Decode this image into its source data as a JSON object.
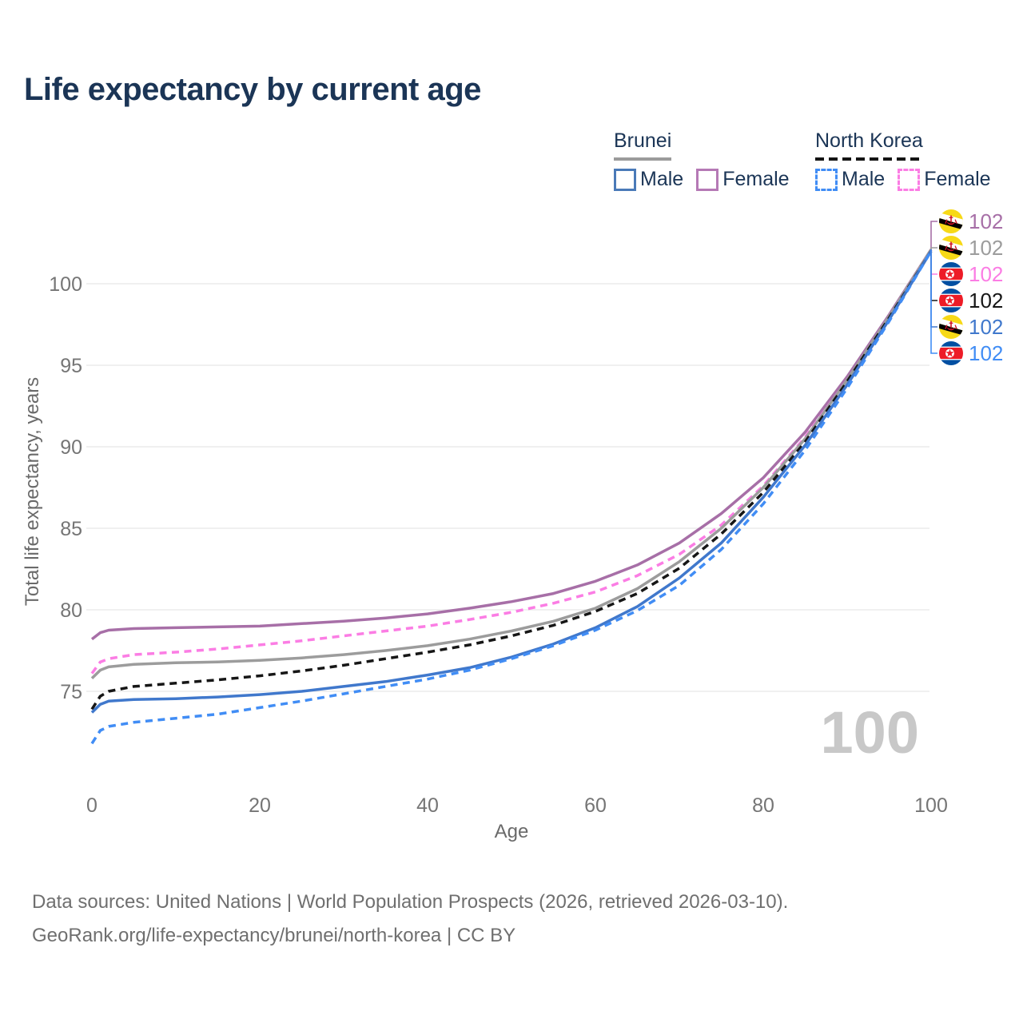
{
  "title": "Life expectancy by current age",
  "legend": {
    "groups": [
      {
        "label": "Brunei",
        "line_style": "solid",
        "underline_color": "#9b9b9b",
        "items": [
          {
            "label": "Male",
            "color": "#4a7ab8",
            "dashed": false
          },
          {
            "label": "Female",
            "color": "#b579b5",
            "dashed": false
          }
        ]
      },
      {
        "label": "North Korea",
        "line_style": "dashed",
        "underline_color": "#141414",
        "items": [
          {
            "label": "Male",
            "color": "#418df5",
            "dashed": true
          },
          {
            "label": "Female",
            "color": "#fb7de4",
            "dashed": true
          }
        ]
      }
    ]
  },
  "chart_data": {
    "type": "line",
    "title": "Life expectancy by current age",
    "xlabel": "Age",
    "ylabel": "Total life expectancy, years",
    "x_ticks": [
      0,
      20,
      40,
      60,
      80,
      100
    ],
    "y_ticks": [
      75,
      80,
      85,
      90,
      95,
      100
    ],
    "xlim": [
      0,
      100
    ],
    "ylim": [
      70.5,
      103
    ],
    "grid": "horizontal-only",
    "legend_position": "top-right",
    "series": [
      {
        "id": "brunei-female",
        "country": "Brunei",
        "sex": "Female",
        "color": "#a76fa7",
        "dashed": false,
        "points": [
          [
            0,
            78.2
          ],
          [
            1,
            78.6
          ],
          [
            2,
            78.75
          ],
          [
            5,
            78.85
          ],
          [
            10,
            78.9
          ],
          [
            15,
            78.95
          ],
          [
            20,
            79.0
          ],
          [
            25,
            79.15
          ],
          [
            30,
            79.3
          ],
          [
            35,
            79.5
          ],
          [
            40,
            79.75
          ],
          [
            45,
            80.1
          ],
          [
            50,
            80.5
          ],
          [
            55,
            81.0
          ],
          [
            60,
            81.75
          ],
          [
            65,
            82.75
          ],
          [
            70,
            84.1
          ],
          [
            75,
            85.9
          ],
          [
            80,
            88.1
          ],
          [
            85,
            90.9
          ],
          [
            90,
            94.3
          ],
          [
            95,
            98.1
          ],
          [
            100,
            102.1
          ]
        ]
      },
      {
        "id": "nk-female",
        "country": "North Korea",
        "sex": "Female",
        "color": "#fb7de4",
        "dashed": true,
        "points": [
          [
            0,
            76.1
          ],
          [
            1,
            76.8
          ],
          [
            2,
            77.0
          ],
          [
            5,
            77.25
          ],
          [
            10,
            77.4
          ],
          [
            15,
            77.6
          ],
          [
            20,
            77.85
          ],
          [
            25,
            78.1
          ],
          [
            30,
            78.4
          ],
          [
            35,
            78.7
          ],
          [
            40,
            79.0
          ],
          [
            45,
            79.4
          ],
          [
            50,
            79.85
          ],
          [
            55,
            80.4
          ],
          [
            60,
            81.1
          ],
          [
            65,
            82.1
          ],
          [
            70,
            83.4
          ],
          [
            75,
            85.2
          ],
          [
            80,
            87.6
          ],
          [
            85,
            90.6
          ],
          [
            90,
            94.1
          ],
          [
            95,
            98.0
          ],
          [
            100,
            102.1
          ]
        ]
      },
      {
        "id": "brunei-total",
        "country": "Brunei",
        "sex": "Both",
        "color": "#9c9c9c",
        "dashed": false,
        "points": [
          [
            0,
            75.8
          ],
          [
            1,
            76.3
          ],
          [
            2,
            76.5
          ],
          [
            5,
            76.65
          ],
          [
            10,
            76.75
          ],
          [
            15,
            76.8
          ],
          [
            20,
            76.9
          ],
          [
            25,
            77.05
          ],
          [
            30,
            77.25
          ],
          [
            35,
            77.5
          ],
          [
            40,
            77.8
          ],
          [
            45,
            78.2
          ],
          [
            50,
            78.7
          ],
          [
            55,
            79.3
          ],
          [
            60,
            80.1
          ],
          [
            65,
            81.3
          ],
          [
            70,
            82.95
          ],
          [
            75,
            85.0
          ],
          [
            80,
            87.5
          ],
          [
            85,
            90.5
          ],
          [
            90,
            94.1
          ],
          [
            95,
            98.0
          ],
          [
            100,
            102.1
          ]
        ]
      },
      {
        "id": "nk-total",
        "country": "North Korea",
        "sex": "Both",
        "color": "#161616",
        "dashed": true,
        "points": [
          [
            0,
            73.9
          ],
          [
            1,
            74.7
          ],
          [
            2,
            75.0
          ],
          [
            5,
            75.3
          ],
          [
            10,
            75.5
          ],
          [
            15,
            75.7
          ],
          [
            20,
            75.95
          ],
          [
            25,
            76.25
          ],
          [
            30,
            76.6
          ],
          [
            35,
            77.0
          ],
          [
            40,
            77.4
          ],
          [
            45,
            77.85
          ],
          [
            50,
            78.4
          ],
          [
            55,
            79.05
          ],
          [
            60,
            79.9
          ],
          [
            65,
            81.0
          ],
          [
            70,
            82.55
          ],
          [
            75,
            84.65
          ],
          [
            80,
            87.2
          ],
          [
            85,
            90.3
          ],
          [
            90,
            94.0
          ],
          [
            95,
            97.9
          ],
          [
            100,
            102.0
          ]
        ]
      },
      {
        "id": "brunei-male",
        "country": "Brunei",
        "sex": "Male",
        "color": "#4078cc",
        "dashed": false,
        "points": [
          [
            0,
            73.7
          ],
          [
            1,
            74.2
          ],
          [
            2,
            74.4
          ],
          [
            5,
            74.5
          ],
          [
            10,
            74.55
          ],
          [
            15,
            74.65
          ],
          [
            20,
            74.8
          ],
          [
            25,
            75.0
          ],
          [
            30,
            75.3
          ],
          [
            35,
            75.6
          ],
          [
            40,
            76.0
          ],
          [
            45,
            76.45
          ],
          [
            50,
            77.1
          ],
          [
            55,
            77.9
          ],
          [
            60,
            78.9
          ],
          [
            65,
            80.2
          ],
          [
            70,
            81.95
          ],
          [
            75,
            84.1
          ],
          [
            80,
            86.9
          ],
          [
            85,
            90.1
          ],
          [
            90,
            93.8
          ],
          [
            95,
            97.8
          ],
          [
            100,
            102.0
          ]
        ]
      },
      {
        "id": "nk-male",
        "country": "North Korea",
        "sex": "Male",
        "color": "#418df5",
        "dashed": true,
        "points": [
          [
            0,
            71.8
          ],
          [
            1,
            72.6
          ],
          [
            2,
            72.85
          ],
          [
            5,
            73.1
          ],
          [
            10,
            73.35
          ],
          [
            15,
            73.6
          ],
          [
            20,
            74.0
          ],
          [
            25,
            74.4
          ],
          [
            30,
            74.85
          ],
          [
            35,
            75.3
          ],
          [
            40,
            75.75
          ],
          [
            45,
            76.3
          ],
          [
            50,
            77.0
          ],
          [
            55,
            77.8
          ],
          [
            60,
            78.75
          ],
          [
            65,
            79.95
          ],
          [
            70,
            81.5
          ],
          [
            75,
            83.7
          ],
          [
            80,
            86.5
          ],
          [
            85,
            89.8
          ],
          [
            90,
            93.6
          ],
          [
            95,
            97.7
          ],
          [
            100,
            102.0
          ]
        ]
      }
    ]
  },
  "right_labels": [
    {
      "flag": "brunei",
      "value": "102",
      "color": "#a76fa7"
    },
    {
      "flag": "brunei",
      "value": "102",
      "color": "#9c9c9c"
    },
    {
      "flag": "north-korea",
      "value": "102",
      "color": "#fb7de4"
    },
    {
      "flag": "north-korea",
      "value": "102",
      "color": "#161616"
    },
    {
      "flag": "brunei",
      "value": "102",
      "color": "#4078cc"
    },
    {
      "flag": "north-korea",
      "value": "102",
      "color": "#418df5"
    }
  ],
  "watermark": "100",
  "footer": {
    "line1": "Data sources: United Nations | World Population Prospects (2026, retrieved 2026-03-10).",
    "line2": "GeoRank.org/life-expectancy/brunei/north-korea | CC BY"
  }
}
